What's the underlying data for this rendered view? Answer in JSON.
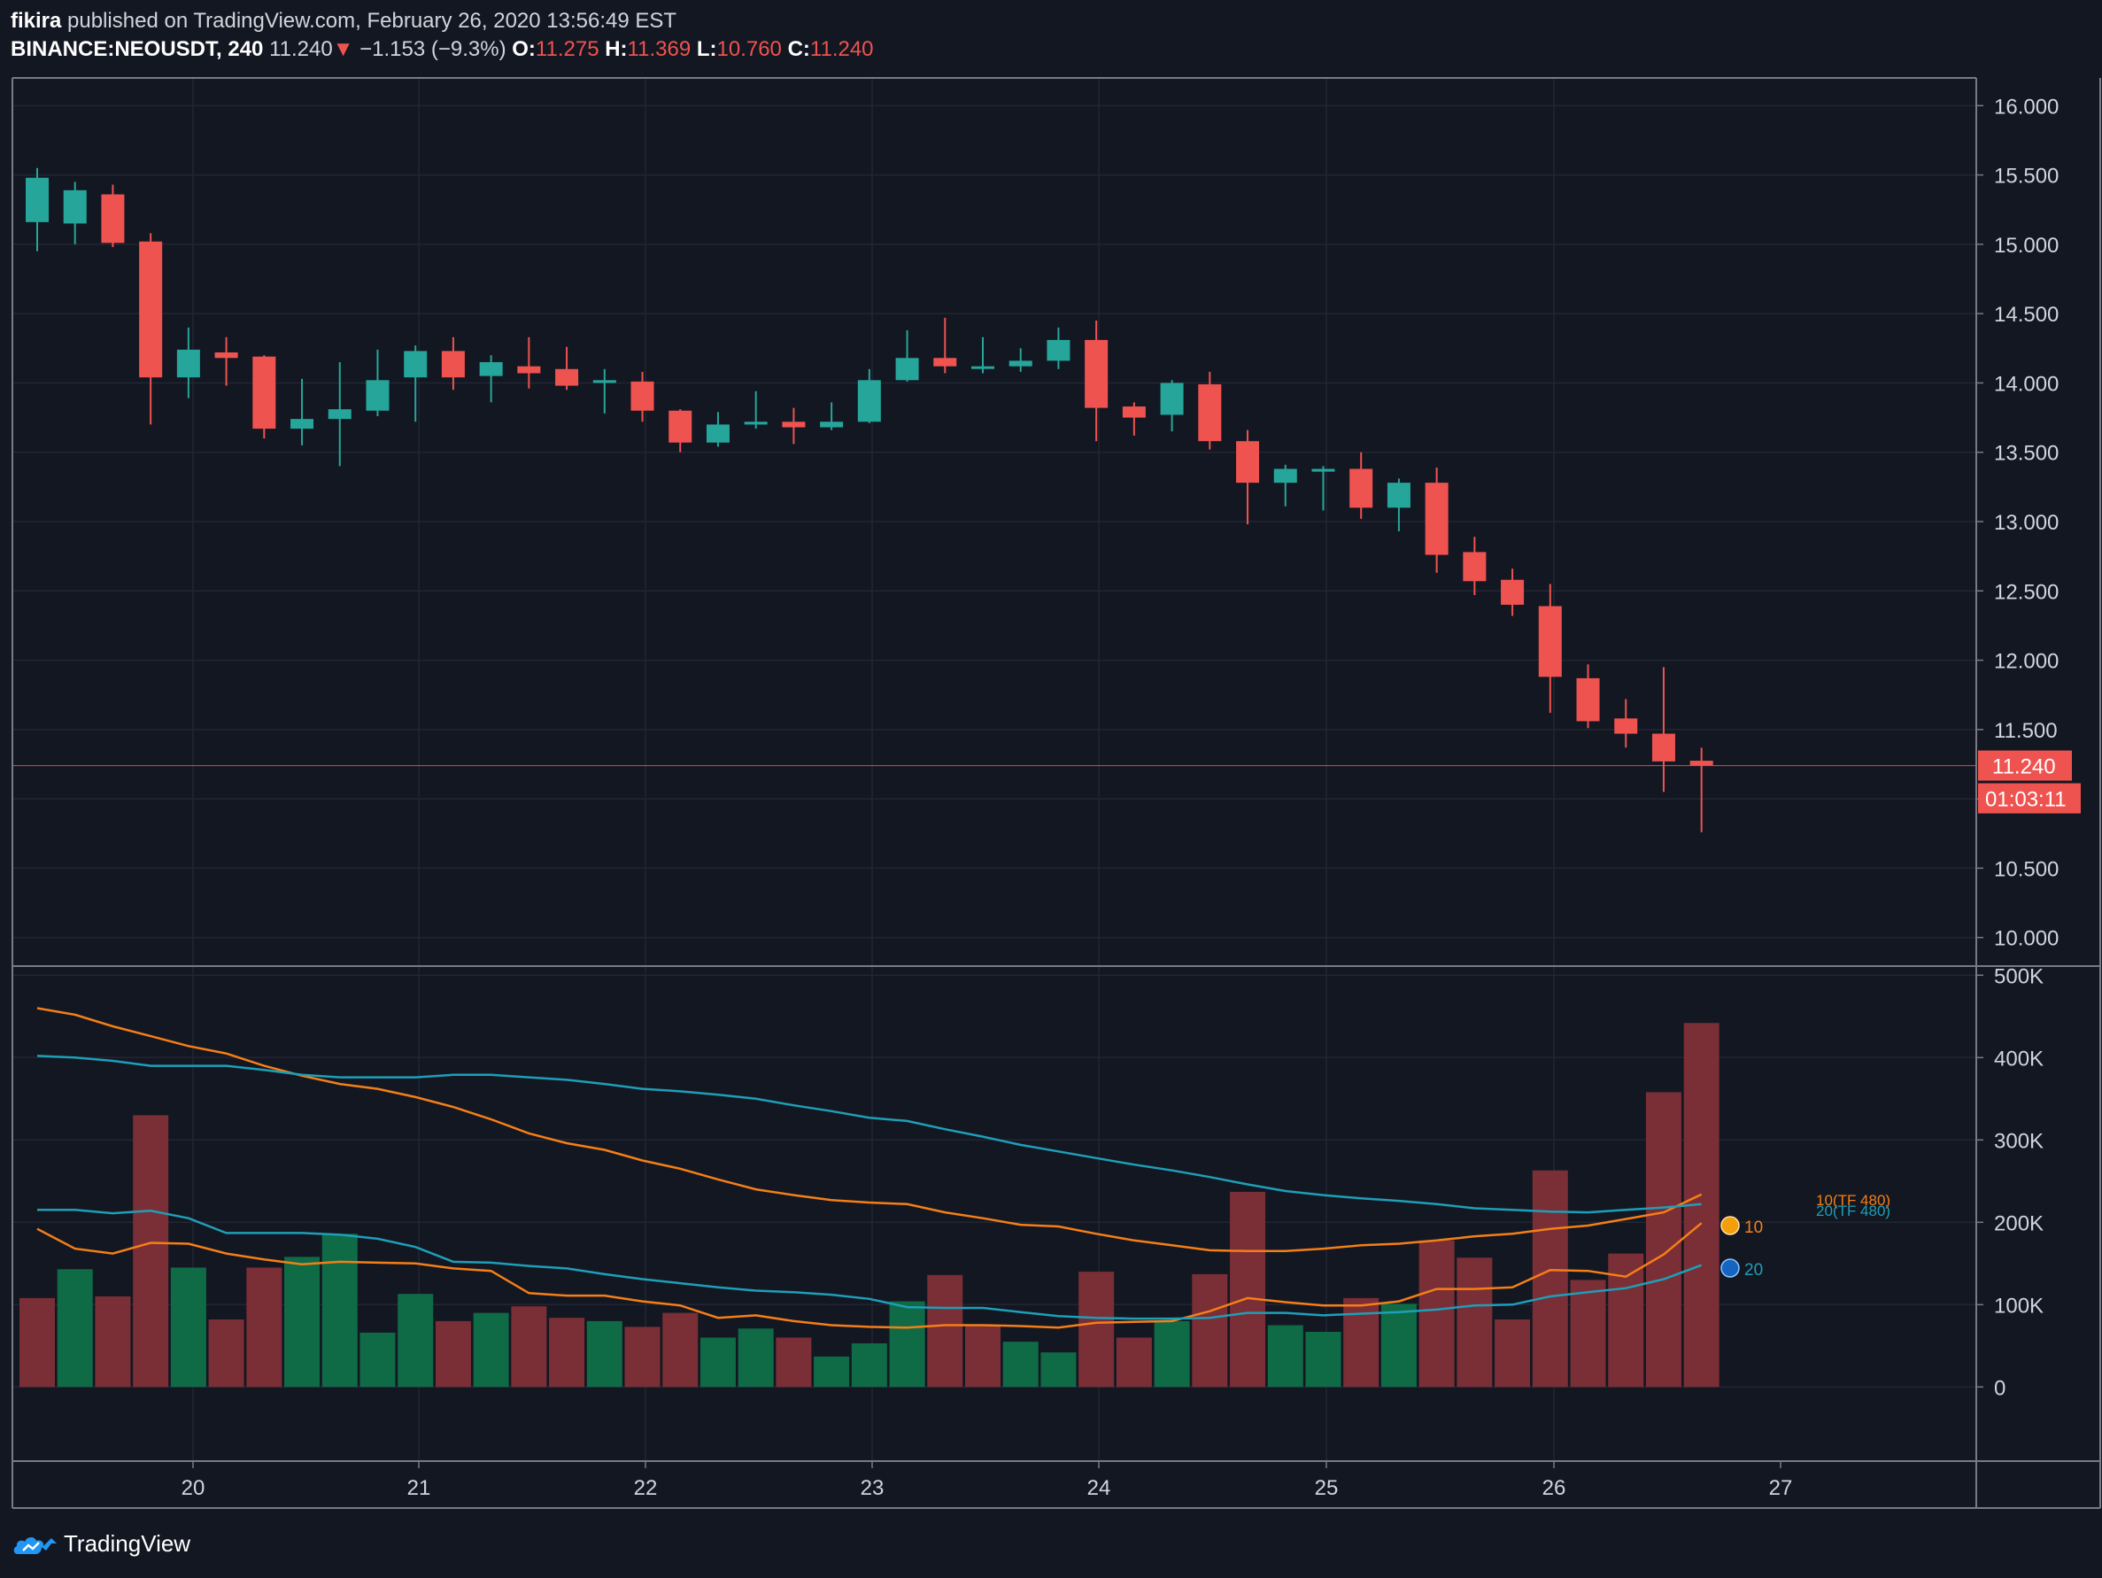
{
  "header": {
    "author": "fikira",
    "published_text": "published on TradingView.com, February 26, 2020 13:56:49 EST",
    "symbol": "BINANCE:NEOUSDT, 240",
    "last": "11.240",
    "change_arrow": "▼",
    "change": "−1.153 (−9.3%)",
    "open_label": "O:",
    "open": "11.275",
    "high_label": "H:",
    "high": "11.369",
    "low_label": "L:",
    "low": "10.760",
    "close_label": "C:",
    "close": "11.240"
  },
  "footer": {
    "brand": "TradingView",
    "logo_icon": "tradingview-cloud-logo-icon"
  },
  "colors": {
    "background": "#131722",
    "up": "#26a69a",
    "down": "#ef5350",
    "volume_up": "#0f6b46",
    "volume_down": "#7a2e36",
    "ma_orange": "#f57f17",
    "ma_teal": "#1e9fb8",
    "grid": "#232632",
    "axis_text": "#d1d4dc"
  },
  "price_label": "11.240",
  "countdown_label": "01:03:11",
  "chart_data": {
    "type": "candlestick",
    "x_tick_labels": [
      "20",
      "21",
      "22",
      "23",
      "24",
      "25",
      "26",
      "27"
    ],
    "price_axis": {
      "ylim": [
        9.8,
        16.2
      ],
      "ticks": [
        "16.000",
        "15.500",
        "15.000",
        "14.500",
        "14.000",
        "13.500",
        "13.000",
        "12.500",
        "12.000",
        "11.500",
        "11.000",
        "10.500",
        "10.000"
      ],
      "current": 11.24
    },
    "volume_axis": {
      "ylim": [
        -90000,
        510000
      ],
      "ticks": [
        "500K",
        "400K",
        "300K",
        "200K",
        "100K",
        "0"
      ]
    },
    "candles": [
      {
        "o": 15.16,
        "h": 15.55,
        "l": 14.95,
        "c": 15.48
      },
      {
        "o": 15.15,
        "h": 15.45,
        "l": 15.0,
        "c": 15.39
      },
      {
        "o": 15.36,
        "h": 15.43,
        "l": 14.98,
        "c": 15.01
      },
      {
        "o": 15.02,
        "h": 15.08,
        "l": 13.7,
        "c": 14.04
      },
      {
        "o": 14.04,
        "h": 14.4,
        "l": 13.89,
        "c": 14.24
      },
      {
        "o": 14.22,
        "h": 14.33,
        "l": 13.98,
        "c": 14.18
      },
      {
        "o": 14.19,
        "h": 14.2,
        "l": 13.6,
        "c": 13.67
      },
      {
        "o": 13.67,
        "h": 14.03,
        "l": 13.55,
        "c": 13.74
      },
      {
        "o": 13.74,
        "h": 14.15,
        "l": 13.4,
        "c": 13.81
      },
      {
        "o": 13.8,
        "h": 14.24,
        "l": 13.76,
        "c": 14.02
      },
      {
        "o": 14.04,
        "h": 14.27,
        "l": 13.72,
        "c": 14.23
      },
      {
        "o": 14.23,
        "h": 14.33,
        "l": 13.95,
        "c": 14.04
      },
      {
        "o": 14.05,
        "h": 14.2,
        "l": 13.86,
        "c": 14.15
      },
      {
        "o": 14.12,
        "h": 14.33,
        "l": 13.96,
        "c": 14.07
      },
      {
        "o": 14.1,
        "h": 14.26,
        "l": 13.95,
        "c": 13.98
      },
      {
        "o": 14.0,
        "h": 14.1,
        "l": 13.78,
        "c": 14.02
      },
      {
        "o": 14.01,
        "h": 14.08,
        "l": 13.72,
        "c": 13.8
      },
      {
        "o": 13.8,
        "h": 13.81,
        "l": 13.5,
        "c": 13.57
      },
      {
        "o": 13.57,
        "h": 13.79,
        "l": 13.54,
        "c": 13.7
      },
      {
        "o": 13.7,
        "h": 13.94,
        "l": 13.67,
        "c": 13.72
      },
      {
        "o": 13.72,
        "h": 13.82,
        "l": 13.56,
        "c": 13.68
      },
      {
        "o": 13.68,
        "h": 13.86,
        "l": 13.66,
        "c": 13.72
      },
      {
        "o": 13.72,
        "h": 14.1,
        "l": 13.71,
        "c": 14.02
      },
      {
        "o": 14.02,
        "h": 14.38,
        "l": 14.01,
        "c": 14.18
      },
      {
        "o": 14.18,
        "h": 14.47,
        "l": 14.07,
        "c": 14.12
      },
      {
        "o": 14.11,
        "h": 14.33,
        "l": 14.07,
        "c": 14.12
      },
      {
        "o": 14.12,
        "h": 14.25,
        "l": 14.08,
        "c": 14.16
      },
      {
        "o": 14.16,
        "h": 14.4,
        "l": 14.1,
        "c": 14.31
      },
      {
        "o": 14.31,
        "h": 14.45,
        "l": 13.58,
        "c": 13.82
      },
      {
        "o": 13.83,
        "h": 13.86,
        "l": 13.62,
        "c": 13.75
      },
      {
        "o": 13.77,
        "h": 14.02,
        "l": 13.65,
        "c": 14.0
      },
      {
        "o": 13.99,
        "h": 14.08,
        "l": 13.52,
        "c": 13.58
      },
      {
        "o": 13.58,
        "h": 13.66,
        "l": 12.98,
        "c": 13.28
      },
      {
        "o": 13.28,
        "h": 13.41,
        "l": 13.11,
        "c": 13.38
      },
      {
        "o": 13.36,
        "h": 13.4,
        "l": 13.08,
        "c": 13.38
      },
      {
        "o": 13.38,
        "h": 13.5,
        "l": 13.02,
        "c": 13.1
      },
      {
        "o": 13.1,
        "h": 13.31,
        "l": 12.93,
        "c": 13.28
      },
      {
        "o": 13.28,
        "h": 13.39,
        "l": 12.63,
        "c": 12.76
      },
      {
        "o": 12.78,
        "h": 12.89,
        "l": 12.47,
        "c": 12.57
      },
      {
        "o": 12.58,
        "h": 12.66,
        "l": 12.32,
        "c": 12.4
      },
      {
        "o": 12.39,
        "h": 12.55,
        "l": 11.62,
        "c": 11.88
      },
      {
        "o": 11.87,
        "h": 11.97,
        "l": 11.51,
        "c": 11.56
      },
      {
        "o": 11.58,
        "h": 11.72,
        "l": 11.37,
        "c": 11.47
      },
      {
        "o": 11.47,
        "h": 11.95,
        "l": 11.05,
        "c": 11.27
      },
      {
        "o": 11.275,
        "h": 11.369,
        "l": 10.76,
        "c": 11.24
      }
    ],
    "volume": [
      108000,
      143000,
      110000,
      330000,
      145000,
      82000,
      145000,
      158000,
      186000,
      66000,
      113000,
      80000,
      90000,
      98000,
      84000,
      80000,
      73000,
      90000,
      60000,
      71000,
      60000,
      37000,
      53000,
      104000,
      136000,
      75000,
      55000,
      42000,
      140000,
      60000,
      80000,
      137000,
      237000,
      75000,
      67000,
      108000,
      101000,
      178000,
      157000,
      82000,
      263000,
      130000,
      162000,
      358000,
      442000
    ],
    "volume_dir": [
      "down",
      "up",
      "down",
      "down",
      "up",
      "down",
      "down",
      "up",
      "up",
      "up",
      "up",
      "down",
      "up",
      "down",
      "down",
      "up",
      "down",
      "down",
      "up",
      "up",
      "down",
      "up",
      "up",
      "up",
      "down",
      "down",
      "up",
      "up",
      "down",
      "down",
      "up",
      "down",
      "down",
      "up",
      "up",
      "down",
      "up",
      "down",
      "down",
      "down",
      "down",
      "down",
      "down",
      "down",
      "down"
    ],
    "series": [
      {
        "name": "10(TF 480)",
        "color": "#f57f17",
        "values": [
          460000,
          452000,
          438000,
          426000,
          414000,
          405000,
          390000,
          378000,
          368000,
          362000,
          352000,
          340000,
          325000,
          308000,
          296000,
          288000,
          275000,
          265000,
          252000,
          240000,
          233000,
          227000,
          224000,
          222000,
          212000,
          205000,
          197000,
          195000,
          186000,
          178000,
          172000,
          166000,
          165000,
          165000,
          168000,
          172000,
          174000,
          178000,
          183000,
          186000,
          192000,
          196000,
          204000,
          212000,
          234000
        ]
      },
      {
        "name": "20(TF 480)",
        "color": "#1e9fb8",
        "values": [
          402000,
          400000,
          396000,
          390000,
          390000,
          390000,
          385000,
          379000,
          376000,
          376000,
          376000,
          379000,
          379000,
          376000,
          373000,
          368000,
          362000,
          359000,
          355000,
          350000,
          342000,
          335000,
          327000,
          323000,
          313000,
          304000,
          294000,
          286000,
          278000,
          270000,
          263000,
          255000,
          246000,
          238000,
          233000,
          229000,
          226000,
          222000,
          217000,
          215000,
          213000,
          212000,
          215000,
          218000,
          222000
        ]
      },
      {
        "name": "10",
        "color": "#f57f17",
        "values": [
          192000,
          168000,
          162000,
          175000,
          174000,
          162000,
          155000,
          149000,
          152000,
          151000,
          150000,
          144000,
          141000,
          114000,
          111000,
          111000,
          104000,
          99000,
          84000,
          87000,
          80000,
          75000,
          73000,
          72000,
          75000,
          75000,
          74000,
          72000,
          78000,
          79000,
          80000,
          92000,
          108000,
          103000,
          99000,
          99000,
          104000,
          119000,
          119000,
          121000,
          142000,
          141000,
          134000,
          161000,
          199000
        ]
      },
      {
        "name": "20",
        "color": "#1e9fb8",
        "values": [
          215000,
          215000,
          211000,
          214000,
          205000,
          187000,
          187000,
          187000,
          185000,
          180000,
          170000,
          152000,
          151000,
          147000,
          144000,
          137000,
          131000,
          126000,
          121000,
          117000,
          115000,
          112000,
          107000,
          97000,
          96000,
          96000,
          91000,
          86000,
          84000,
          83000,
          83000,
          84000,
          90000,
          90000,
          87000,
          89000,
          91000,
          94000,
          99000,
          100000,
          110000,
          115000,
          120000,
          131000,
          148000
        ]
      }
    ],
    "legend": {
      "ma10_tf480": "10(TF 480)",
      "ma20_tf480": "20(TF 480)",
      "ma10": "10",
      "ma20": "20"
    }
  }
}
